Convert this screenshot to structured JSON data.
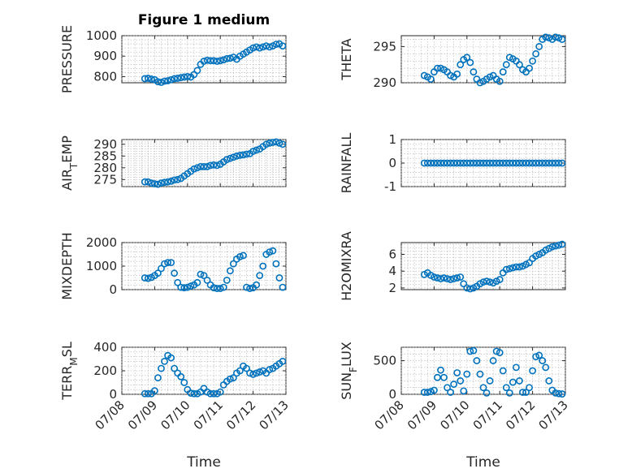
{
  "figure": {
    "title": "Figure 1 medium",
    "xlabel": "Time",
    "marker_color": "#0072BD"
  },
  "chart_data": [
    {
      "type": "scatter",
      "title": "Figure 1 medium",
      "ylabel": "PRESSURE",
      "ylim": [
        770,
        1000
      ],
      "yticks": [
        800,
        900,
        1000
      ],
      "xlim": [
        0,
        5
      ],
      "xticks": [
        0,
        1,
        2,
        3,
        4,
        5
      ],
      "xticklabels": [
        "07/08",
        "07/09",
        "07/10",
        "07/11",
        "07/12",
        "07/13"
      ],
      "x": [
        0.7,
        0.8,
        0.9,
        1.0,
        1.1,
        1.2,
        1.3,
        1.4,
        1.5,
        1.6,
        1.7,
        1.8,
        1.9,
        2.0,
        2.1,
        2.2,
        2.3,
        2.4,
        2.5,
        2.6,
        2.7,
        2.8,
        2.9,
        3.0,
        3.1,
        3.2,
        3.3,
        3.4,
        3.5,
        3.6,
        3.7,
        3.8,
        3.9,
        4.0,
        4.1,
        4.2,
        4.3,
        4.4,
        4.5,
        4.6,
        4.7,
        4.8,
        4.9
      ],
      "y": [
        790,
        792,
        788,
        785,
        775,
        772,
        778,
        780,
        785,
        790,
        792,
        795,
        798,
        800,
        798,
        810,
        830,
        860,
        875,
        880,
        878,
        878,
        875,
        878,
        882,
        888,
        890,
        895,
        885,
        900,
        910,
        920,
        930,
        940,
        945,
        940,
        945,
        950,
        945,
        950,
        958,
        960,
        950
      ]
    },
    {
      "type": "scatter",
      "ylabel": "THETA",
      "ylim": [
        290,
        296.5
      ],
      "yticks": [
        290,
        295
      ],
      "xlim": [
        0,
        5
      ],
      "xticks": [
        0,
        1,
        2,
        3,
        4,
        5
      ],
      "xticklabels": [
        "07/08",
        "07/09",
        "07/10",
        "07/11",
        "07/12",
        "07/13"
      ],
      "x": [
        0.7,
        0.8,
        0.9,
        1.0,
        1.1,
        1.2,
        1.3,
        1.4,
        1.5,
        1.6,
        1.7,
        1.8,
        1.9,
        2.0,
        2.1,
        2.2,
        2.3,
        2.4,
        2.5,
        2.6,
        2.7,
        2.8,
        2.9,
        3.0,
        3.1,
        3.2,
        3.3,
        3.4,
        3.5,
        3.6,
        3.7,
        3.8,
        3.9,
        4.0,
        4.1,
        4.2,
        4.3,
        4.4,
        4.5,
        4.6,
        4.7,
        4.8,
        4.9
      ],
      "y": [
        291,
        290.8,
        290.5,
        291.5,
        292,
        292,
        291.8,
        291.5,
        291,
        290.8,
        291.2,
        292.5,
        293.2,
        293.5,
        292.8,
        291.5,
        290.5,
        290,
        290.2,
        290.5,
        290.8,
        291,
        290.5,
        290.2,
        291.5,
        292.5,
        293.5,
        293.3,
        293,
        292.5,
        291.8,
        291.5,
        292,
        293,
        294,
        295,
        296,
        296.3,
        296.2,
        296,
        296.3,
        296.2,
        296
      ]
    },
    {
      "type": "scatter",
      "ylabel": "AIR_TEMP",
      "ylim": [
        272,
        292
      ],
      "yticks": [
        275,
        280,
        285,
        290
      ],
      "xlim": [
        0,
        5
      ],
      "xticks": [
        0,
        1,
        2,
        3,
        4,
        5
      ],
      "xticklabels": [
        "07/08",
        "07/09",
        "07/10",
        "07/11",
        "07/12",
        "07/13"
      ],
      "x": [
        0.7,
        0.8,
        0.9,
        1.0,
        1.1,
        1.2,
        1.3,
        1.4,
        1.5,
        1.6,
        1.7,
        1.8,
        1.9,
        2.0,
        2.1,
        2.2,
        2.3,
        2.4,
        2.5,
        2.6,
        2.7,
        2.8,
        2.9,
        3.0,
        3.1,
        3.2,
        3.3,
        3.4,
        3.5,
        3.6,
        3.7,
        3.8,
        3.9,
        4.0,
        4.1,
        4.2,
        4.3,
        4.4,
        4.5,
        4.6,
        4.7,
        4.8,
        4.9
      ],
      "y": [
        274,
        274,
        273.5,
        273.2,
        273,
        273.5,
        273.8,
        274,
        274.3,
        274.8,
        275,
        275.5,
        276.5,
        277.5,
        278.5,
        279.5,
        280,
        280.5,
        280.5,
        280.5,
        281,
        281.2,
        281,
        281.5,
        282.5,
        283.5,
        284,
        284.5,
        285,
        285.3,
        285.5,
        285.8,
        286,
        287,
        287.5,
        288,
        289,
        290,
        290.5,
        290.8,
        291,
        290.5,
        290
      ]
    },
    {
      "type": "scatter",
      "ylabel": "RAINFALL",
      "ylim": [
        -1,
        1
      ],
      "yticks": [
        -1,
        0,
        1
      ],
      "xlim": [
        0,
        5
      ],
      "xticks": [
        0,
        1,
        2,
        3,
        4,
        5
      ],
      "xticklabels": [
        "07/08",
        "07/09",
        "07/10",
        "07/11",
        "07/12",
        "07/13"
      ],
      "x": [
        0.7,
        0.8,
        0.9,
        1.0,
        1.1,
        1.2,
        1.3,
        1.4,
        1.5,
        1.6,
        1.7,
        1.8,
        1.9,
        2.0,
        2.1,
        2.2,
        2.3,
        2.4,
        2.5,
        2.6,
        2.7,
        2.8,
        2.9,
        3.0,
        3.1,
        3.2,
        3.3,
        3.4,
        3.5,
        3.6,
        3.7,
        3.8,
        3.9,
        4.0,
        4.1,
        4.2,
        4.3,
        4.4,
        4.5,
        4.6,
        4.7,
        4.8,
        4.9
      ],
      "y": [
        0,
        0,
        0,
        0,
        0,
        0,
        0,
        0,
        0,
        0,
        0,
        0,
        0,
        0,
        0,
        0,
        0,
        0,
        0,
        0,
        0,
        0,
        0,
        0,
        0,
        0,
        0,
        0,
        0,
        0,
        0,
        0,
        0,
        0,
        0,
        0,
        0,
        0,
        0,
        0,
        0,
        0,
        0
      ]
    },
    {
      "type": "scatter",
      "ylabel": "MIXDEPTH",
      "ylim": [
        0,
        2000
      ],
      "yticks": [
        0,
        1000,
        2000
      ],
      "xlim": [
        0,
        5
      ],
      "xticks": [
        0,
        1,
        2,
        3,
        4,
        5
      ],
      "xticklabels": [
        "07/08",
        "07/09",
        "07/10",
        "07/11",
        "07/12",
        "07/13"
      ],
      "x": [
        0.7,
        0.8,
        0.9,
        1.0,
        1.1,
        1.2,
        1.3,
        1.4,
        1.5,
        1.6,
        1.7,
        1.8,
        1.9,
        2.0,
        2.1,
        2.2,
        2.3,
        2.4,
        2.5,
        2.6,
        2.7,
        2.8,
        2.9,
        3.0,
        3.1,
        3.2,
        3.3,
        3.4,
        3.5,
        3.6,
        3.7,
        3.8,
        3.9,
        4.0,
        4.1,
        4.2,
        4.3,
        4.4,
        4.5,
        4.6,
        4.7,
        4.8,
        4.9
      ],
      "y": [
        500,
        480,
        520,
        600,
        700,
        900,
        1100,
        1150,
        1150,
        700,
        300,
        100,
        80,
        100,
        150,
        200,
        300,
        650,
        600,
        400,
        200,
        80,
        50,
        50,
        100,
        400,
        800,
        1100,
        1300,
        1400,
        1450,
        100,
        50,
        80,
        200,
        600,
        1000,
        1500,
        1600,
        1650,
        1100,
        500,
        100
      ]
    },
    {
      "type": "scatter",
      "ylabel": "H2OMIXRA",
      "ylim": [
        1.8,
        7.4
      ],
      "yticks": [
        2,
        4,
        6
      ],
      "xlim": [
        0,
        5
      ],
      "xticks": [
        0,
        1,
        2,
        3,
        4,
        5
      ],
      "xticklabels": [
        "07/08",
        "07/09",
        "07/10",
        "07/11",
        "07/12",
        "07/13"
      ],
      "x": [
        0.7,
        0.8,
        0.9,
        1.0,
        1.1,
        1.2,
        1.3,
        1.4,
        1.5,
        1.6,
        1.7,
        1.8,
        1.9,
        2.0,
        2.1,
        2.2,
        2.3,
        2.4,
        2.5,
        2.6,
        2.7,
        2.8,
        2.9,
        3.0,
        3.1,
        3.2,
        3.3,
        3.4,
        3.5,
        3.6,
        3.7,
        3.8,
        3.9,
        4.0,
        4.1,
        4.2,
        4.3,
        4.4,
        4.5,
        4.6,
        4.7,
        4.8,
        4.9
      ],
      "y": [
        3.6,
        3.8,
        3.5,
        3.3,
        3.2,
        3.1,
        3.2,
        3.1,
        3.0,
        3.1,
        3.2,
        3.3,
        2.5,
        2.0,
        1.9,
        2.0,
        2.2,
        2.5,
        2.7,
        2.8,
        2.7,
        2.6,
        2.8,
        3.0,
        3.8,
        4.2,
        4.3,
        4.4,
        4.5,
        4.5,
        4.6,
        4.8,
        5.0,
        5.5,
        5.8,
        6.0,
        6.2,
        6.5,
        6.7,
        6.9,
        7.0,
        7.1,
        7.2
      ]
    },
    {
      "type": "scatter",
      "ylabel": "TERR_MSL",
      "ylim": [
        0,
        400
      ],
      "yticks": [
        0,
        200,
        400
      ],
      "xlim": [
        0,
        5
      ],
      "xticks": [
        0,
        1,
        2,
        3,
        4,
        5
      ],
      "xticklabels": [
        "07/08",
        "07/09",
        "07/10",
        "07/11",
        "07/12",
        "07/13"
      ],
      "x": [
        0.7,
        0.8,
        0.9,
        1.0,
        1.1,
        1.2,
        1.3,
        1.4,
        1.5,
        1.6,
        1.7,
        1.8,
        1.9,
        2.0,
        2.1,
        2.2,
        2.3,
        2.4,
        2.5,
        2.6,
        2.7,
        2.8,
        2.9,
        3.0,
        3.1,
        3.2,
        3.3,
        3.4,
        3.5,
        3.6,
        3.7,
        3.8,
        3.9,
        4.0,
        4.1,
        4.2,
        4.3,
        4.4,
        4.5,
        4.6,
        4.7,
        4.8,
        4.9
      ],
      "y": [
        5,
        5,
        5,
        30,
        140,
        220,
        280,
        330,
        310,
        220,
        180,
        150,
        100,
        40,
        10,
        5,
        5,
        20,
        50,
        20,
        5,
        5,
        5,
        20,
        80,
        110,
        130,
        140,
        180,
        200,
        240,
        220,
        180,
        170,
        180,
        190,
        200,
        180,
        210,
        220,
        240,
        260,
        280
      ]
    },
    {
      "type": "scatter",
      "ylabel": "SUN_FLUX",
      "ylim": [
        0,
        700
      ],
      "yticks": [
        0,
        500
      ],
      "xlim": [
        0,
        5
      ],
      "xticks": [
        0,
        1,
        2,
        3,
        4,
        5
      ],
      "xticklabels": [
        "07/08",
        "07/09",
        "07/10",
        "07/11",
        "07/12",
        "07/13"
      ],
      "x": [
        0.7,
        0.8,
        0.9,
        1.0,
        1.1,
        1.2,
        1.3,
        1.4,
        1.5,
        1.6,
        1.7,
        1.8,
        1.9,
        2.0,
        2.1,
        2.2,
        2.3,
        2.4,
        2.5,
        2.6,
        2.7,
        2.8,
        2.9,
        3.0,
        3.1,
        3.2,
        3.3,
        3.4,
        3.5,
        3.6,
        3.7,
        3.8,
        3.9,
        4.0,
        4.1,
        4.2,
        4.3,
        4.4,
        4.5,
        4.6,
        4.7,
        4.8,
        4.9
      ],
      "y": [
        30,
        30,
        40,
        60,
        250,
        360,
        250,
        100,
        30,
        150,
        320,
        200,
        50,
        300,
        640,
        650,
        500,
        300,
        100,
        20,
        200,
        500,
        640,
        620,
        350,
        100,
        20,
        180,
        400,
        200,
        30,
        30,
        100,
        350,
        560,
        580,
        500,
        400,
        200,
        60,
        20,
        10,
        5
      ]
    }
  ]
}
